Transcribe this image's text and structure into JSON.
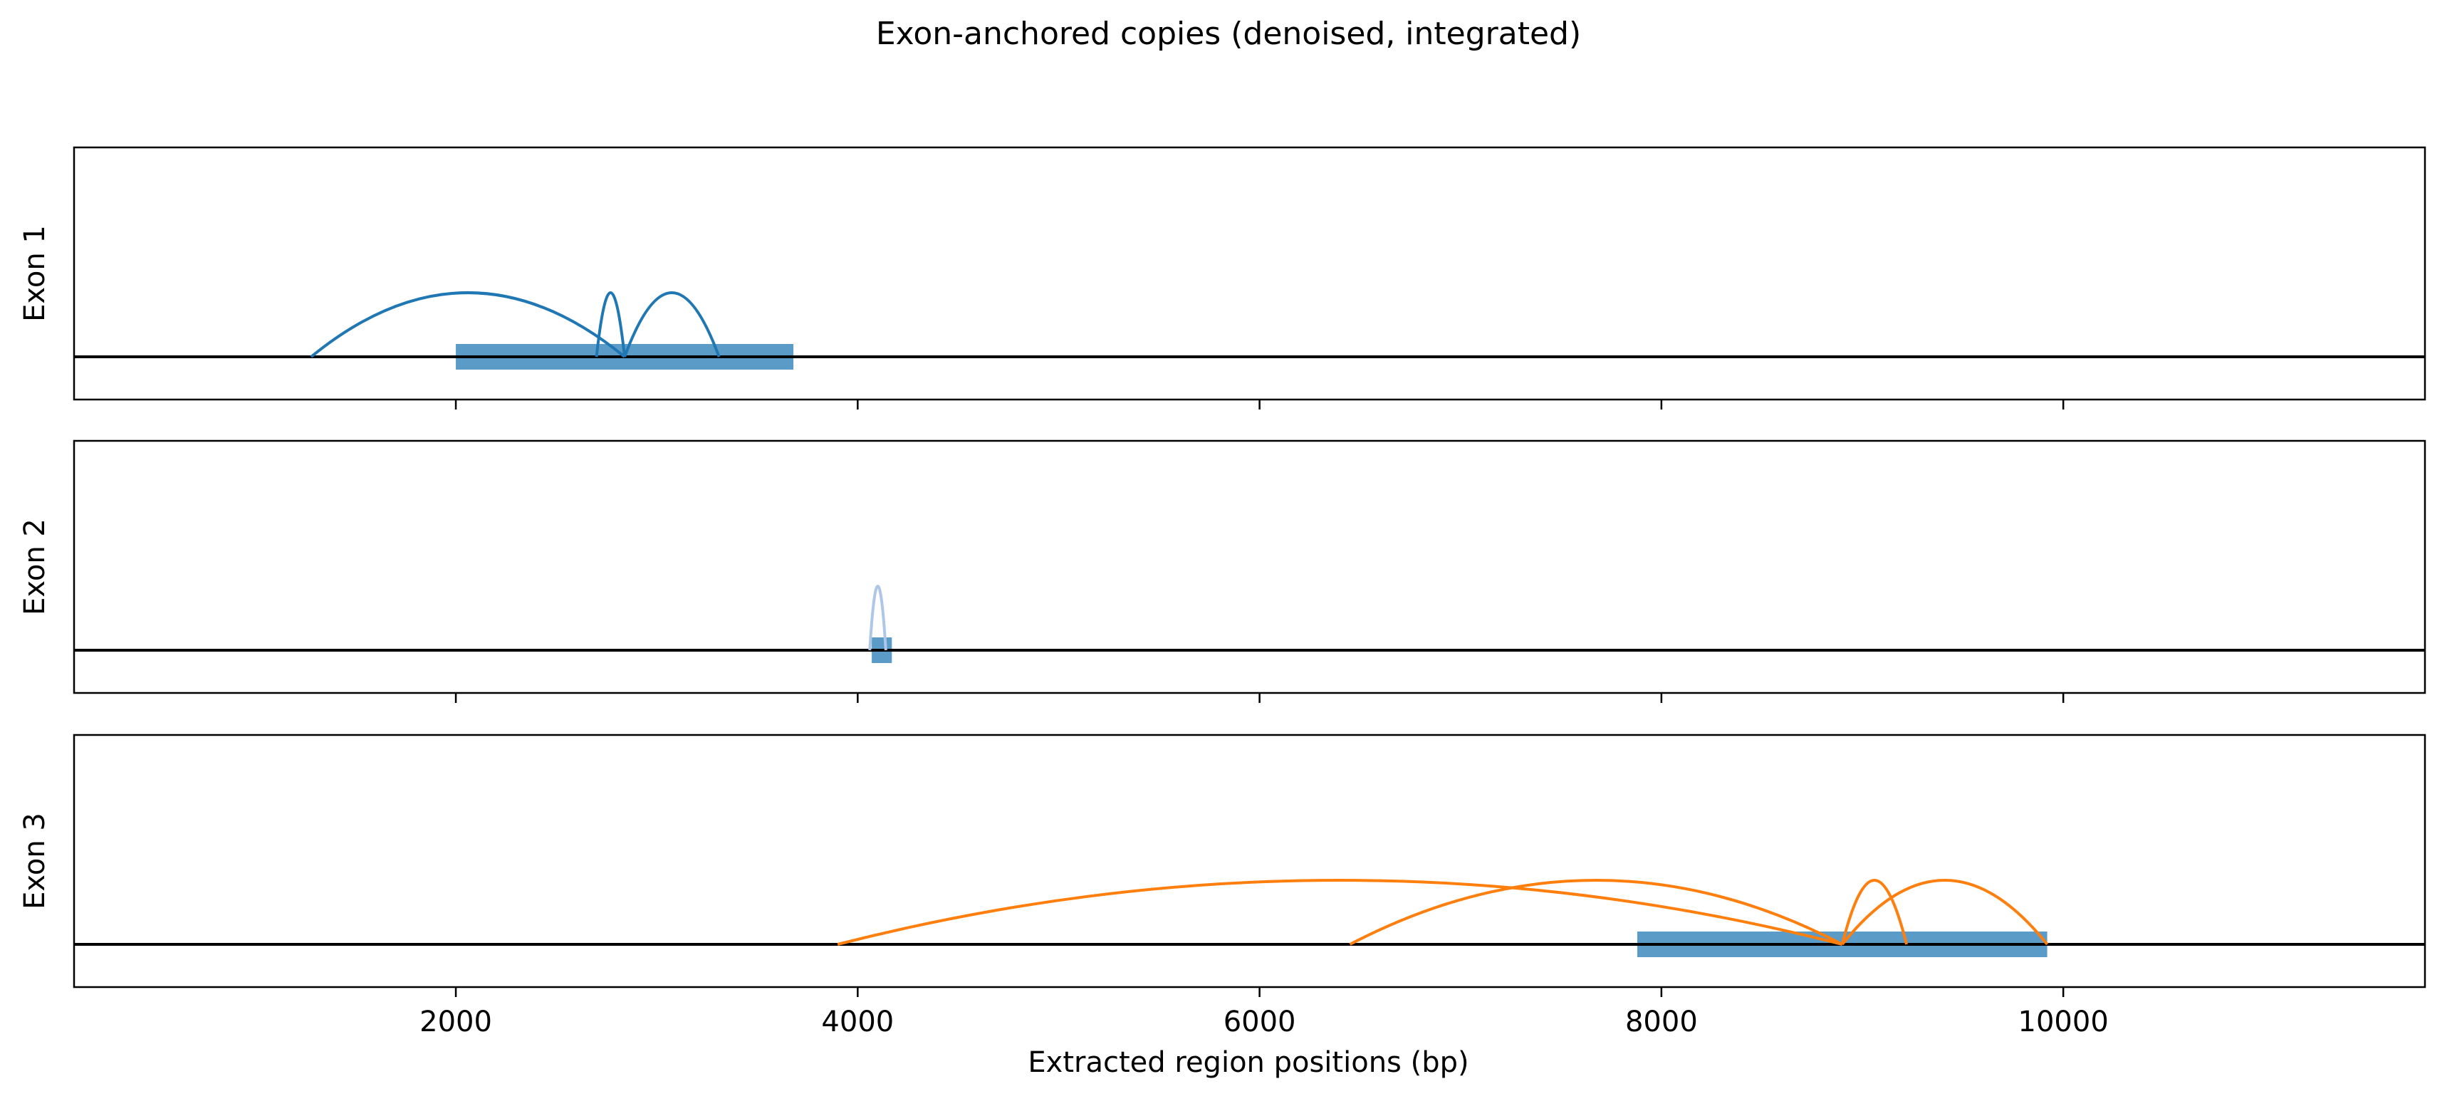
{
  "chart_data": {
    "type": "arc",
    "title": "Exon-anchored copies (denoised, integrated)",
    "xlabel": "Extracted region positions (bp)",
    "xlim": [
      100,
      11800
    ],
    "xticks": [
      2000,
      4000,
      6000,
      8000,
      10000
    ],
    "xtick_labels": [
      "2000",
      "4000",
      "6000",
      "8000",
      "10000"
    ],
    "shared_x": true,
    "grid": false,
    "panels": [
      {
        "ylabel": "Exon 1",
        "color": "#1f77b4",
        "exon_block": {
          "start": 2000,
          "end": 3680,
          "color": "#5b9bc8"
        },
        "arcs": [
          {
            "start": 1280,
            "end": 2840,
            "height": 1.0
          },
          {
            "start": 2700,
            "end": 2840,
            "height": 1.0
          },
          {
            "start": 2840,
            "end": 3310,
            "height": 1.0
          }
        ]
      },
      {
        "ylabel": "Exon 2",
        "color": "#aec7e8",
        "exon_block": {
          "start": 4070,
          "end": 4170,
          "color": "#5b9bc8"
        },
        "arcs": [
          {
            "start": 4060,
            "end": 4140,
            "height": 1.0
          }
        ]
      },
      {
        "ylabel": "Exon 3",
        "color": "#ff7f0e",
        "exon_block": {
          "start": 7880,
          "end": 9920,
          "color": "#5b9bc8"
        },
        "arcs": [
          {
            "start": 3900,
            "end": 8900,
            "height": 1.0
          },
          {
            "start": 6450,
            "end": 8900,
            "height": 1.0
          },
          {
            "start": 8900,
            "end": 9220,
            "height": 1.0
          },
          {
            "start": 8900,
            "end": 9920,
            "height": 1.0
          }
        ]
      }
    ]
  }
}
